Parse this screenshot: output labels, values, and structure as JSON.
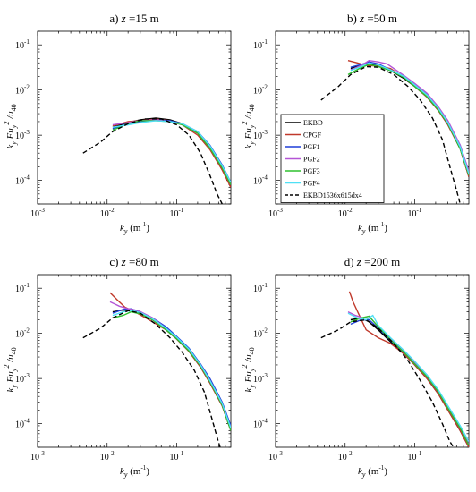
{
  "figure": {
    "legend": {
      "entries": [
        {
          "name": "EKBD",
          "color": "#000000",
          "dash": "solid"
        },
        {
          "name": "CPGF",
          "color": "#c0392b",
          "dash": "solid"
        },
        {
          "name": "PGF1",
          "color": "#1f3fd8",
          "dash": "solid"
        },
        {
          "name": "PGF2",
          "color": "#b455d6",
          "dash": "solid"
        },
        {
          "name": "PGF3",
          "color": "#2ec12e",
          "dash": "solid"
        },
        {
          "name": "PGF4",
          "color": "#4fe0f5",
          "dash": "solid"
        },
        {
          "name": "EKBD1536x615dx4",
          "color": "#000000",
          "dash": "dashed"
        }
      ]
    },
    "axis_labels": {
      "y_main": "k",
      "y_sub": "y",
      "y_mid": " Fu",
      "y_sub2": "y",
      "y_sup": "2",
      "y_div": " /u",
      "y_tail_sub": "40",
      "x_main": "k",
      "x_sub": "y",
      "x_unit": " (m",
      "x_unit_sup": "-1",
      "x_unit_close": ")"
    },
    "x_ticks": [
      {
        "base": "10",
        "exp": "-3",
        "v": 0.001
      },
      {
        "base": "10",
        "exp": "-2",
        "v": 0.01
      },
      {
        "base": "10",
        "exp": "-1",
        "v": 0.1
      }
    ],
    "y_ticks": [
      {
        "base": "10",
        "exp": "-4",
        "v": 0.0001
      },
      {
        "base": "10",
        "exp": "-3",
        "v": 0.001
      },
      {
        "base": "10",
        "exp": "-2",
        "v": 0.01
      },
      {
        "base": "10",
        "exp": "-1",
        "v": 0.1
      }
    ]
  },
  "chart_data": [
    {
      "type": "line",
      "title_prefix": "a) ",
      "title_var": "z",
      "title_suffix": " =15 m",
      "x_scale": "log",
      "y_scale": "log",
      "xlim": [
        0.001,
        0.6
      ],
      "ylim": [
        3e-05,
        0.2
      ],
      "legend_placement": "none",
      "series": [
        {
          "name": "EKBD",
          "x": [
            0.012,
            0.02,
            0.03,
            0.05,
            0.08,
            0.12,
            0.2,
            0.3,
            0.45,
            0.6
          ],
          "y": [
            0.0015,
            0.0019,
            0.0022,
            0.0024,
            0.0022,
            0.0018,
            0.0011,
            0.0005,
            0.00018,
            7e-05
          ]
        },
        {
          "name": "CPGF",
          "x": [
            0.012,
            0.02,
            0.03,
            0.05,
            0.08,
            0.12,
            0.2,
            0.3,
            0.45,
            0.6
          ],
          "y": [
            0.0016,
            0.002,
            0.0021,
            0.0023,
            0.0021,
            0.0017,
            0.001,
            0.00048,
            0.00017,
            7e-05
          ]
        },
        {
          "name": "PGF1",
          "x": [
            0.012,
            0.02,
            0.03,
            0.05,
            0.08,
            0.12,
            0.2,
            0.3,
            0.45,
            0.6
          ],
          "y": [
            0.0014,
            0.0018,
            0.002,
            0.0022,
            0.0021,
            0.0018,
            0.0012,
            0.0006,
            0.00022,
            9e-05
          ]
        },
        {
          "name": "PGF2",
          "x": [
            0.012,
            0.02,
            0.03,
            0.05,
            0.08,
            0.12,
            0.2,
            0.3,
            0.45,
            0.6
          ],
          "y": [
            0.0017,
            0.0019,
            0.0021,
            0.0022,
            0.002,
            0.0017,
            0.0011,
            0.00055,
            0.0002,
            8e-05
          ]
        },
        {
          "name": "PGF3",
          "x": [
            0.012,
            0.02,
            0.03,
            0.05,
            0.08,
            0.12,
            0.2,
            0.3,
            0.45,
            0.6
          ],
          "y": [
            0.0013,
            0.0018,
            0.0021,
            0.0021,
            0.002,
            0.0017,
            0.0011,
            0.00052,
            0.00019,
            8e-05
          ]
        },
        {
          "name": "PGF4",
          "x": [
            0.012,
            0.02,
            0.03,
            0.05,
            0.08,
            0.12,
            0.2,
            0.3,
            0.45,
            0.6
          ],
          "y": [
            0.0015,
            0.0017,
            0.0019,
            0.0021,
            0.002,
            0.0018,
            0.0012,
            0.00058,
            0.00021,
            9e-05
          ]
        },
        {
          "name": "EKBD1536x615dx4",
          "x": [
            0.0045,
            0.008,
            0.012,
            0.02,
            0.035,
            0.06,
            0.1,
            0.15,
            0.22,
            0.3,
            0.38,
            0.45
          ],
          "y": [
            0.0004,
            0.0007,
            0.0012,
            0.0018,
            0.0023,
            0.0023,
            0.0017,
            0.001,
            0.0004,
            0.00013,
            5e-05,
            3e-05
          ]
        }
      ]
    },
    {
      "type": "line",
      "title_prefix": "b) ",
      "title_var": "z",
      "title_suffix": " =50 m",
      "x_scale": "log",
      "y_scale": "log",
      "xlim": [
        0.001,
        0.6
      ],
      "ylim": [
        3e-05,
        0.2
      ],
      "legend_placement": "bottom-left",
      "series": [
        {
          "name": "EKBD",
          "x": [
            0.012,
            0.017,
            0.022,
            0.03,
            0.045,
            0.07,
            0.1,
            0.15,
            0.22,
            0.3,
            0.45,
            0.6
          ],
          "y": [
            0.03,
            0.036,
            0.038,
            0.035,
            0.027,
            0.018,
            0.012,
            0.007,
            0.0035,
            0.0017,
            0.0005,
            0.00012
          ]
        },
        {
          "name": "CPGF",
          "x": [
            0.011,
            0.015,
            0.02,
            0.03,
            0.045,
            0.07,
            0.1,
            0.15,
            0.22,
            0.3,
            0.45,
            0.6
          ],
          "y": [
            0.045,
            0.04,
            0.035,
            0.034,
            0.03,
            0.019,
            0.012,
            0.007,
            0.0035,
            0.0017,
            0.0005,
            0.00012
          ]
        },
        {
          "name": "PGF1",
          "x": [
            0.012,
            0.017,
            0.022,
            0.03,
            0.045,
            0.07,
            0.1,
            0.15,
            0.22,
            0.3,
            0.45,
            0.6
          ],
          "y": [
            0.032,
            0.037,
            0.042,
            0.038,
            0.028,
            0.02,
            0.013,
            0.008,
            0.004,
            0.002,
            0.0006,
            0.00015
          ]
        },
        {
          "name": "PGF2",
          "x": [
            0.012,
            0.017,
            0.022,
            0.03,
            0.04,
            0.07,
            0.1,
            0.15,
            0.22,
            0.3,
            0.45,
            0.6
          ],
          "y": [
            0.028,
            0.035,
            0.045,
            0.042,
            0.038,
            0.021,
            0.014,
            0.0085,
            0.0042,
            0.0021,
            0.0006,
            0.00016
          ]
        },
        {
          "name": "PGF3",
          "x": [
            0.011,
            0.016,
            0.022,
            0.03,
            0.045,
            0.07,
            0.1,
            0.15,
            0.22,
            0.3,
            0.45,
            0.6
          ],
          "y": [
            0.022,
            0.03,
            0.037,
            0.033,
            0.027,
            0.019,
            0.012,
            0.0072,
            0.0036,
            0.0018,
            0.0005,
            0.00013
          ]
        },
        {
          "name": "PGF4",
          "x": [
            0.012,
            0.017,
            0.022,
            0.03,
            0.045,
            0.07,
            0.1,
            0.15,
            0.22,
            0.3,
            0.45,
            0.6
          ],
          "y": [
            0.027,
            0.033,
            0.04,
            0.036,
            0.028,
            0.02,
            0.013,
            0.0078,
            0.0039,
            0.0019,
            0.00055,
            0.00014
          ]
        },
        {
          "name": "EKBD1536x615dx4",
          "x": [
            0.0045,
            0.008,
            0.012,
            0.02,
            0.03,
            0.05,
            0.08,
            0.12,
            0.18,
            0.25,
            0.32,
            0.4,
            0.45
          ],
          "y": [
            0.006,
            0.012,
            0.022,
            0.033,
            0.032,
            0.022,
            0.012,
            0.006,
            0.0024,
            0.0008,
            0.0002,
            6e-05,
            3e-05
          ]
        }
      ]
    },
    {
      "type": "line",
      "title_prefix": "c) ",
      "title_var": "z",
      "title_suffix": " =80 m",
      "x_scale": "log",
      "y_scale": "log",
      "xlim": [
        0.001,
        0.6
      ],
      "ylim": [
        3e-05,
        0.2
      ],
      "legend_placement": "none",
      "series": [
        {
          "name": "EKBD",
          "x": [
            0.012,
            0.017,
            0.022,
            0.03,
            0.045,
            0.07,
            0.1,
            0.15,
            0.22,
            0.3,
            0.45,
            0.6
          ],
          "y": [
            0.03,
            0.033,
            0.032,
            0.028,
            0.02,
            0.012,
            0.0075,
            0.004,
            0.0018,
            0.0008,
            0.00025,
            7e-05
          ]
        },
        {
          "name": "CPGF",
          "x": [
            0.011,
            0.014,
            0.018,
            0.025,
            0.04,
            0.07,
            0.1,
            0.15,
            0.22,
            0.3,
            0.45,
            0.6
          ],
          "y": [
            0.08,
            0.055,
            0.038,
            0.03,
            0.02,
            0.012,
            0.0075,
            0.004,
            0.0018,
            0.0008,
            0.00025,
            7e-05
          ]
        },
        {
          "name": "PGF1",
          "x": [
            0.012,
            0.017,
            0.022,
            0.03,
            0.045,
            0.07,
            0.1,
            0.15,
            0.22,
            0.3,
            0.45,
            0.6
          ],
          "y": [
            0.028,
            0.034,
            0.035,
            0.03,
            0.022,
            0.014,
            0.0085,
            0.0047,
            0.0021,
            0.001,
            0.0003,
            9e-05
          ]
        },
        {
          "name": "PGF2",
          "x": [
            0.011,
            0.015,
            0.02,
            0.028,
            0.045,
            0.07,
            0.1,
            0.15,
            0.22,
            0.3,
            0.45,
            0.6
          ],
          "y": [
            0.05,
            0.04,
            0.035,
            0.032,
            0.022,
            0.013,
            0.008,
            0.0044,
            0.002,
            0.0009,
            0.00028,
            8e-05
          ]
        },
        {
          "name": "PGF3",
          "x": [
            0.012,
            0.017,
            0.022,
            0.03,
            0.045,
            0.07,
            0.1,
            0.15,
            0.22,
            0.3,
            0.45,
            0.6
          ],
          "y": [
            0.022,
            0.025,
            0.03,
            0.027,
            0.02,
            0.012,
            0.0076,
            0.0041,
            0.0019,
            0.00085,
            0.00026,
            7e-05
          ]
        },
        {
          "name": "PGF4",
          "x": [
            0.012,
            0.017,
            0.022,
            0.03,
            0.045,
            0.07,
            0.1,
            0.15,
            0.22,
            0.3,
            0.45,
            0.6
          ],
          "y": [
            0.025,
            0.03,
            0.032,
            0.029,
            0.021,
            0.013,
            0.0082,
            0.0045,
            0.002,
            0.0009,
            0.00028,
            8e-05
          ]
        },
        {
          "name": "EKBD1536x615dx4",
          "x": [
            0.0045,
            0.008,
            0.012,
            0.02,
            0.03,
            0.05,
            0.08,
            0.12,
            0.18,
            0.25,
            0.32,
            0.38,
            0.42
          ],
          "y": [
            0.008,
            0.013,
            0.022,
            0.032,
            0.028,
            0.016,
            0.008,
            0.0038,
            0.0015,
            0.0005,
            0.00013,
            5e-05,
            3e-05
          ]
        }
      ]
    },
    {
      "type": "line",
      "title_prefix": "d) ",
      "title_var": "z",
      "title_suffix": " =200 m",
      "x_scale": "log",
      "y_scale": "log",
      "xlim": [
        0.001,
        0.6
      ],
      "ylim": [
        3e-05,
        0.2
      ],
      "legend_placement": "none",
      "series": [
        {
          "name": "EKBD",
          "x": [
            0.012,
            0.017,
            0.022,
            0.03,
            0.045,
            0.07,
            0.1,
            0.15,
            0.22,
            0.3,
            0.45,
            0.6
          ],
          "y": [
            0.02,
            0.022,
            0.018,
            0.012,
            0.0065,
            0.0035,
            0.002,
            0.001,
            0.00045,
            0.0002,
            7e-05,
            3e-05
          ]
        },
        {
          "name": "CPGF",
          "x": [
            0.0115,
            0.013,
            0.016,
            0.02,
            0.03,
            0.045,
            0.07,
            0.1,
            0.15,
            0.22,
            0.3,
            0.45,
            0.6
          ],
          "y": [
            0.085,
            0.05,
            0.025,
            0.012,
            0.008,
            0.006,
            0.0035,
            0.002,
            0.001,
            0.00045,
            0.0002,
            7e-05,
            3e-05
          ]
        },
        {
          "name": "PGF1",
          "x": [
            0.012,
            0.017,
            0.022,
            0.03,
            0.045,
            0.07,
            0.1,
            0.15,
            0.22,
            0.3,
            0.45,
            0.6
          ],
          "y": [
            0.016,
            0.02,
            0.02,
            0.013,
            0.007,
            0.0038,
            0.0022,
            0.0011,
            0.0005,
            0.00023,
            8e-05,
            3.5e-05
          ]
        },
        {
          "name": "PGF2",
          "x": [
            0.011,
            0.014,
            0.018,
            0.022,
            0.03,
            0.045,
            0.07,
            0.1,
            0.15,
            0.22,
            0.3,
            0.45,
            0.6
          ],
          "y": [
            0.03,
            0.025,
            0.022,
            0.024,
            0.014,
            0.0075,
            0.004,
            0.0023,
            0.0012,
            0.00052,
            0.00024,
            8e-05,
            3.5e-05
          ]
        },
        {
          "name": "PGF3",
          "x": [
            0.012,
            0.017,
            0.022,
            0.03,
            0.045,
            0.07,
            0.1,
            0.15,
            0.22,
            0.3,
            0.45,
            0.6
          ],
          "y": [
            0.018,
            0.022,
            0.024,
            0.014,
            0.0072,
            0.0038,
            0.0021,
            0.0011,
            0.0005,
            0.00022,
            8e-05,
            3.3e-05
          ]
        },
        {
          "name": "PGF4",
          "x": [
            0.011,
            0.015,
            0.02,
            0.025,
            0.03,
            0.045,
            0.07,
            0.1,
            0.15,
            0.22,
            0.3,
            0.45,
            0.6
          ],
          "y": [
            0.028,
            0.022,
            0.02,
            0.025,
            0.015,
            0.008,
            0.0042,
            0.0024,
            0.0012,
            0.00055,
            0.00025,
            9e-05,
            4e-05
          ]
        },
        {
          "name": "EKBD1536x615dx4",
          "x": [
            0.0045,
            0.008,
            0.012,
            0.02,
            0.03,
            0.05,
            0.08,
            0.12,
            0.18,
            0.25,
            0.32,
            0.36
          ],
          "y": [
            0.008,
            0.012,
            0.018,
            0.02,
            0.013,
            0.006,
            0.0025,
            0.0009,
            0.0003,
            0.0001,
            4e-05,
            3e-05
          ]
        }
      ]
    }
  ]
}
